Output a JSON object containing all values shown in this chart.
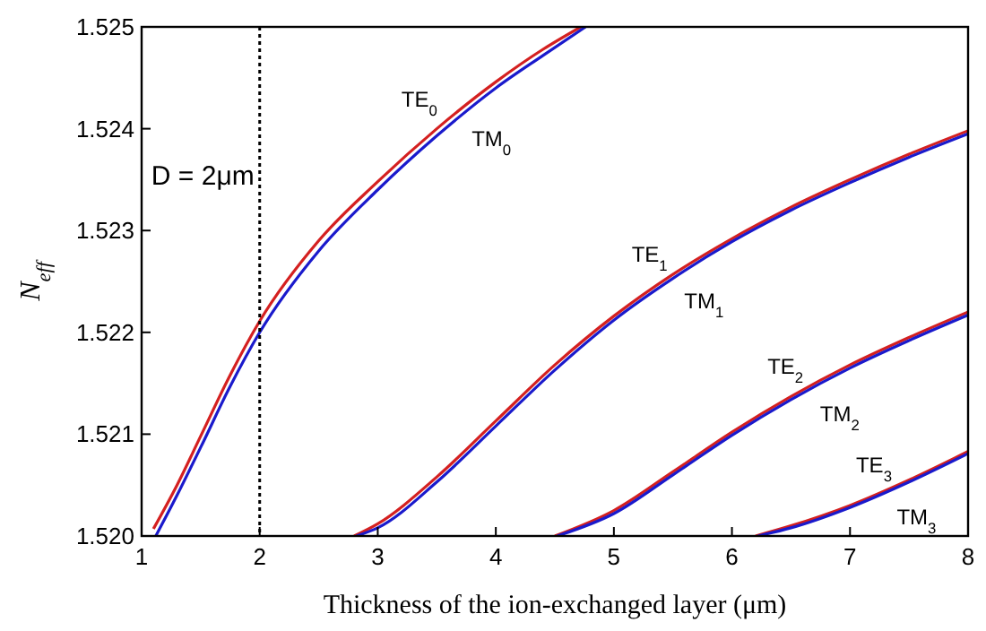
{
  "chart_data": {
    "type": "line",
    "xlabel": "Thickness of the ion-exchanged layer (μm)",
    "ylabel": "N$_{eff}$",
    "xlim": [
      1,
      8
    ],
    "ylim": [
      1.52,
      1.525
    ],
    "xticks": [
      1,
      2,
      3,
      4,
      5,
      6,
      7,
      8
    ],
    "yticks": [
      {
        "value": 1.52,
        "label": "1.520"
      },
      1.521,
      1.522,
      1.523,
      1.524,
      1.525
    ],
    "marker": "none",
    "line_style": "solid",
    "series": [
      {
        "color": "#d42020",
        "x": [
          1.1,
          1.3,
          1.5,
          1.75,
          2,
          2.5,
          3,
          3.5,
          4,
          4.4,
          4.72
        ],
        "values": [
          1.52007,
          1.5205,
          1.52098,
          1.52158,
          1.52211,
          1.5229,
          1.52348,
          1.524,
          1.52446,
          1.52478,
          1.525
        ]
      },
      {
        "color": "#1a1acc",
        "x": [
          1.12,
          1.3,
          1.5,
          1.75,
          2,
          2.5,
          3,
          3.5,
          4,
          4.4,
          4.76
        ],
        "values": [
          1.52,
          1.5204,
          1.52087,
          1.52147,
          1.522,
          1.5228,
          1.5234,
          1.52393,
          1.5244,
          1.52472,
          1.525
        ]
      },
      {
        "color": "#d42020",
        "x": [
          2.8,
          3,
          3.5,
          4,
          4.5,
          5,
          5.5,
          6,
          6.5,
          7,
          7.5,
          8
        ],
        "values": [
          1.52,
          1.52012,
          1.52058,
          1.52113,
          1.52168,
          1.52216,
          1.52257,
          1.52292,
          1.52323,
          1.5235,
          1.52375,
          1.52398
        ]
      },
      {
        "color": "#1a1acc",
        "x": [
          2.82,
          3,
          3.5,
          4,
          4.5,
          5,
          5.5,
          6,
          6.5,
          7,
          7.5,
          8
        ],
        "values": [
          1.52,
          1.52008,
          1.52053,
          1.52108,
          1.52163,
          1.52212,
          1.52253,
          1.52289,
          1.5232,
          1.52347,
          1.52372,
          1.52395
        ]
      },
      {
        "color": "#d42020",
        "x": [
          4.5,
          5,
          5.5,
          6,
          6.5,
          7,
          7.5,
          8
        ],
        "values": [
          1.52,
          1.52025,
          1.52063,
          1.52102,
          1.52137,
          1.52168,
          1.52195,
          1.5222
        ]
      },
      {
        "color": "#1a1acc",
        "x": [
          4.52,
          5,
          5.5,
          6,
          6.5,
          7,
          7.5,
          8
        ],
        "values": [
          1.52,
          1.52022,
          1.5206,
          1.52099,
          1.52134,
          1.52165,
          1.52192,
          1.52217
        ]
      },
      {
        "color": "#d42020",
        "x": [
          6.2,
          6.5,
          7,
          7.5,
          8
        ],
        "values": [
          1.52,
          1.5201,
          1.5203,
          1.52055,
          1.52083
        ]
      },
      {
        "color": "#1a1acc",
        "x": [
          6.22,
          6.5,
          7,
          7.5,
          8
        ],
        "values": [
          1.52,
          1.52008,
          1.52028,
          1.52053,
          1.52081
        ]
      }
    ],
    "ref_lines": [
      {
        "axis": "x",
        "value": 2,
        "label": "D = 2μm",
        "color": "#000000",
        "line_style": "dotted"
      }
    ],
    "annotations": [
      {
        "text": "TE$_{0}$",
        "x": 3.55,
        "y": 1.52409
      },
      {
        "text": "TM$_{0}$",
        "x": 3.75,
        "y": 1.52416
      },
      {
        "text": "TE$_{1}$",
        "x": 5.5,
        "y": 1.52257
      },
      {
        "text": "TM$_{1}$",
        "x": 5.55,
        "y": 1.52257
      },
      {
        "text": "TE$_{2}$",
        "x": 6.65,
        "y": 1.52147
      },
      {
        "text": "TM$_{2}$",
        "x": 6.7,
        "y": 1.52146
      },
      {
        "text": "TE$_{3}$",
        "x": 7.4,
        "y": 1.5205
      },
      {
        "text": "TM$_{3}$",
        "x": 7.35,
        "y": 1.52045
      }
    ]
  }
}
